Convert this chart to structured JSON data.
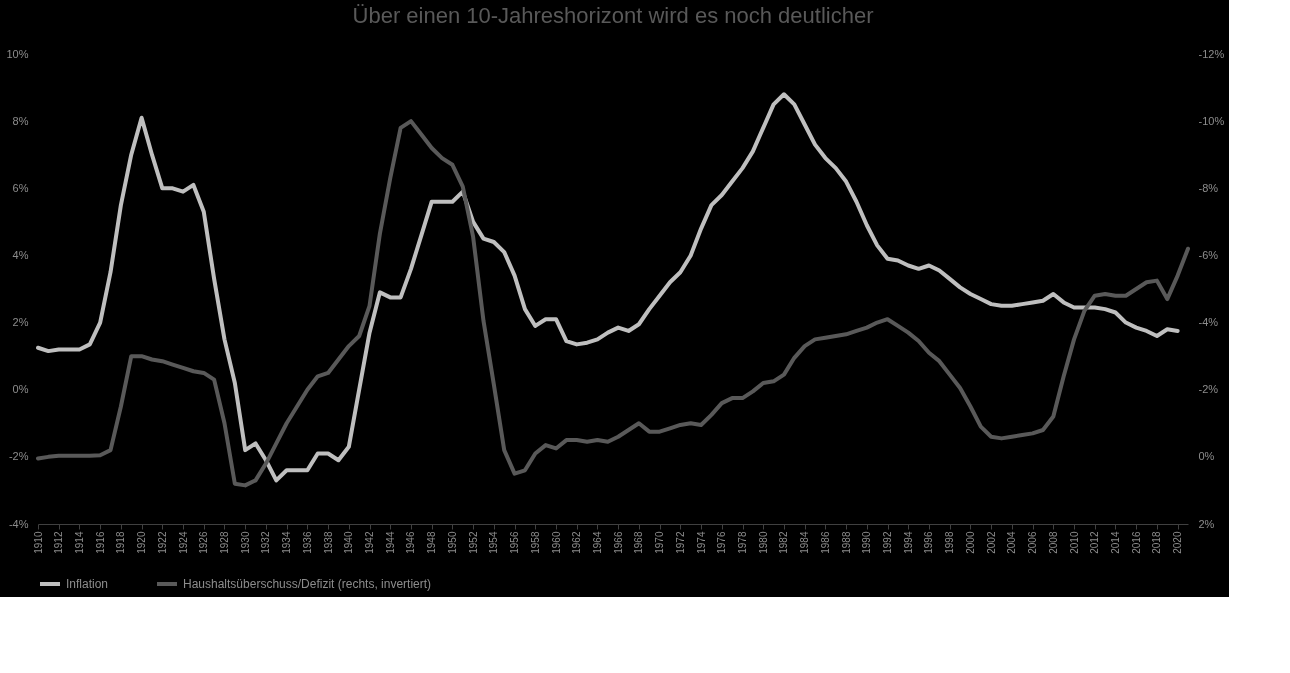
{
  "chart_data": {
    "type": "line",
    "title": "Über einen 10-Jahreshorizont wird es noch deutlicher",
    "x": [
      1910,
      1911,
      1912,
      1913,
      1914,
      1915,
      1916,
      1917,
      1918,
      1919,
      1920,
      1921,
      1922,
      1923,
      1924,
      1925,
      1926,
      1927,
      1928,
      1929,
      1930,
      1931,
      1932,
      1933,
      1934,
      1935,
      1936,
      1937,
      1938,
      1939,
      1940,
      1941,
      1942,
      1943,
      1944,
      1945,
      1946,
      1947,
      1948,
      1949,
      1950,
      1951,
      1952,
      1953,
      1954,
      1955,
      1956,
      1957,
      1958,
      1959,
      1960,
      1961,
      1962,
      1963,
      1964,
      1965,
      1966,
      1967,
      1968,
      1969,
      1970,
      1971,
      1972,
      1973,
      1974,
      1975,
      1976,
      1977,
      1978,
      1979,
      1980,
      1981,
      1982,
      1983,
      1984,
      1985,
      1986,
      1987,
      1988,
      1989,
      1990,
      1991,
      1992,
      1993,
      1994,
      1995,
      1996,
      1997,
      1998,
      1999,
      2000,
      2001,
      2002,
      2003,
      2004,
      2005,
      2006,
      2007,
      2008,
      2009,
      2010,
      2011,
      2012,
      2013,
      2014,
      2015,
      2016,
      2017,
      2018,
      2019,
      2020,
      2021
    ],
    "series": [
      {
        "name": "Inflation",
        "color": "#bfbfbf",
        "values": [
          1.25,
          1.15,
          1.2,
          1.2,
          1.2,
          1.35,
          2.0,
          3.5,
          5.5,
          7.0,
          8.1,
          7.0,
          6.0,
          6.0,
          5.9,
          6.1,
          5.3,
          3.3,
          1.5,
          0.2,
          -1.8,
          -1.6,
          -2.1,
          -2.7,
          -2.4,
          -2.4,
          -2.4,
          -1.9,
          -1.9,
          -2.1,
          -1.7,
          0.0,
          1.7,
          2.9,
          2.75,
          2.75,
          3.6,
          4.6,
          5.6,
          5.6,
          5.6,
          5.9,
          5.0,
          4.5,
          4.4,
          4.1,
          3.4,
          2.4,
          1.9,
          2.1,
          2.1,
          1.45,
          1.35,
          1.4,
          1.5,
          1.7,
          1.85,
          1.75,
          1.95,
          2.4,
          2.8,
          3.2,
          3.5,
          4.0,
          4.8,
          5.5,
          5.8,
          6.2,
          6.6,
          7.1,
          7.8,
          8.5,
          8.8,
          8.5,
          7.9,
          7.3,
          6.9,
          6.6,
          6.2,
          5.6,
          4.9,
          4.3,
          3.9,
          3.85,
          3.7,
          3.6,
          3.7,
          3.55,
          3.3,
          3.05,
          2.85,
          2.7,
          2.55,
          2.5,
          2.5,
          2.55,
          2.6,
          2.65,
          2.85,
          2.6,
          2.45,
          2.45,
          2.45,
          2.4,
          2.3,
          2.0,
          1.85,
          1.75,
          1.6,
          1.8,
          1.75,
          null
        ]
      },
      {
        "name": "Haushaltsüberschuss/Defizit (rechts, invertiert)",
        "color": "#595959",
        "axis": "y2",
        "values": [
          0.05,
          0,
          -0.03,
          -0.03,
          -0.03,
          -0.03,
          -0.05,
          -0.2,
          -1.5,
          -3.0,
          -3.0,
          -2.9,
          -2.85,
          -2.75,
          -2.65,
          -2.55,
          -2.5,
          -2.3,
          -1.0,
          0.8,
          0.85,
          0.7,
          0.2,
          -0.4,
          -1.0,
          -1.5,
          -2.0,
          -2.4,
          -2.5,
          -2.9,
          -3.3,
          -3.6,
          -4.5,
          -6.65,
          -8.3,
          -9.8,
          -10.0,
          -9.6,
          -9.2,
          -8.9,
          -8.7,
          -8.05,
          -6.55,
          -4.05,
          -2.15,
          -0.2,
          0.5,
          0.4,
          -0.1,
          -0.35,
          -0.25,
          -0.5,
          -0.5,
          -0.45,
          -0.5,
          -0.45,
          -0.6,
          -0.8,
          -1.0,
          -0.75,
          -0.75,
          -0.85,
          -0.95,
          -1.0,
          -0.95,
          -1.25,
          -1.6,
          -1.75,
          -1.75,
          -1.95,
          -2.2,
          -2.25,
          -2.45,
          -2.95,
          -3.3,
          -3.5,
          -3.55,
          -3.6,
          -3.65,
          -3.75,
          -3.85,
          -4.0,
          -4.1,
          -3.9,
          -3.7,
          -3.45,
          -3.1,
          -2.85,
          -2.45,
          -2.05,
          -1.5,
          -0.9,
          -0.6,
          -0.55,
          -0.6,
          -0.65,
          -0.7,
          -0.8,
          -1.2,
          -2.4,
          -3.5,
          -4.35,
          -4.8,
          -4.85,
          -4.8,
          -4.8,
          -5.0,
          -5.2,
          -5.25,
          -4.7,
          -5.4,
          -6.2
        ]
      }
    ],
    "xlim": [
      1910,
      2021
    ],
    "xticks": [
      1910,
      1912,
      1914,
      1916,
      1918,
      1920,
      1922,
      1924,
      1926,
      1928,
      1930,
      1932,
      1934,
      1936,
      1938,
      1940,
      1942,
      1944,
      1946,
      1948,
      1950,
      1952,
      1954,
      1956,
      1958,
      1960,
      1962,
      1964,
      1966,
      1968,
      1970,
      1972,
      1974,
      1976,
      1978,
      1980,
      1982,
      1984,
      1986,
      1988,
      1990,
      1992,
      1994,
      1996,
      1998,
      2000,
      2002,
      2004,
      2006,
      2008,
      2010,
      2012,
      2014,
      2016,
      2018,
      2020
    ],
    "ylim": [
      -4,
      10
    ],
    "yticks": [
      {
        "value": -4,
        "label": "-4%"
      },
      {
        "value": -2,
        "label": "-2%"
      },
      {
        "value": 0,
        "label": "0%"
      },
      {
        "value": 2,
        "label": "2%"
      },
      {
        "value": 4,
        "label": "4%"
      },
      {
        "value": 6,
        "label": "6%"
      },
      {
        "value": 8,
        "label": "8%"
      },
      {
        "value": 10,
        "label": "10%"
      }
    ],
    "y2lim": [
      2,
      -12
    ],
    "y2ticks": [
      {
        "value": 2,
        "label": "2%"
      },
      {
        "value": 0,
        "label": "0%"
      },
      {
        "value": -2,
        "label": "-2%"
      },
      {
        "value": -4,
        "label": "-4%"
      },
      {
        "value": -6,
        "label": "-6%"
      },
      {
        "value": -8,
        "label": "-8%"
      },
      {
        "value": -10,
        "label": "-10%"
      },
      {
        "value": -12,
        "label": "-12%"
      }
    ],
    "grid": false,
    "legend": "bottom",
    "marker": "none",
    "line_style": "solid"
  }
}
